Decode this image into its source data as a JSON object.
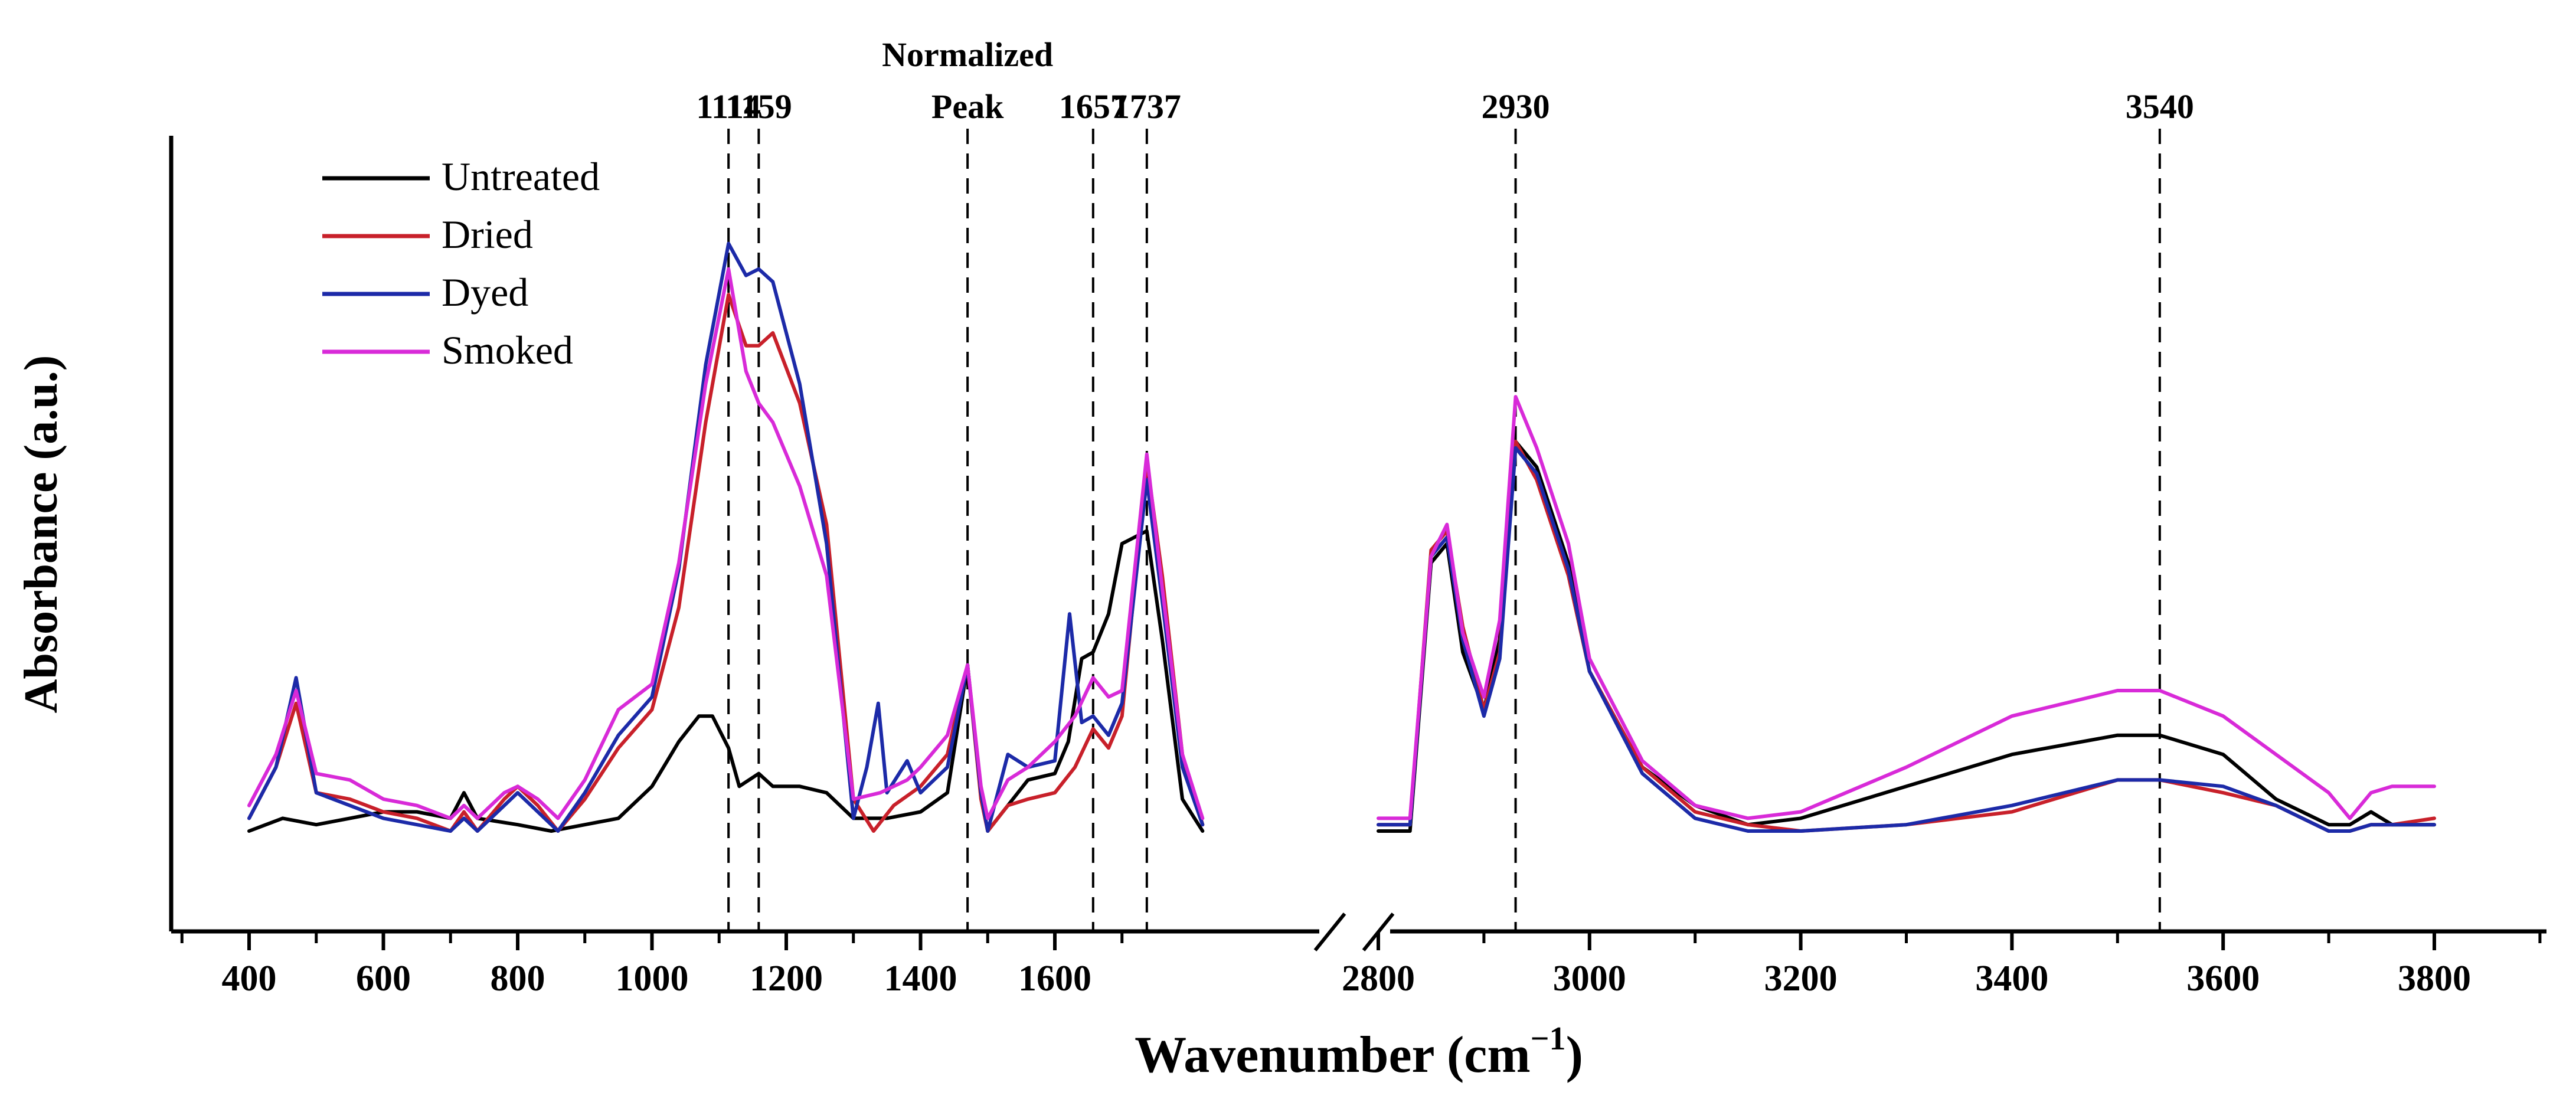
{
  "chart_data": {
    "type": "line",
    "title": "",
    "xlabel": "Wavenumber (cm",
    "xlabel_sup": "−1",
    "xlabel_close": ")",
    "ylabel": "Absorbance (a.u.)",
    "x_ranges": [
      [
        400,
        1750
      ],
      [
        2800,
        3800
      ]
    ],
    "x_ticks": [
      400,
      600,
      800,
      1000,
      1200,
      1400,
      1600,
      2800,
      3000,
      3200,
      3400,
      3600,
      3800
    ],
    "x_tick_labels": [
      "400",
      "600",
      "800",
      "1000",
      "1200",
      "1400",
      "1600",
      "2800",
      "3000",
      "3200",
      "3400",
      "3600",
      "3800"
    ],
    "ylim": [
      -0.05,
      1.0
    ],
    "axis_break_between": [
      1750,
      2800
    ],
    "legend": {
      "placement": "top-left",
      "entries": [
        "Untreated",
        "Dried",
        "Dyed",
        "Smoked"
      ]
    },
    "annotations": [
      {
        "x": 1114,
        "label": "1114"
      },
      {
        "x": 1159,
        "label": "1159"
      },
      {
        "x": 1470,
        "label": "Peak",
        "label_top": "Normalized"
      },
      {
        "x": 1657,
        "label": "1657"
      },
      {
        "x": 1737,
        "label": "1737"
      },
      {
        "x": 2930,
        "label": "2930"
      },
      {
        "x": 3540,
        "label": "3540"
      }
    ],
    "series": [
      {
        "name": "Untreated",
        "color": "#000000",
        "points": [
          [
            400,
            0.0
          ],
          [
            450,
            0.02
          ],
          [
            500,
            0.01
          ],
          [
            550,
            0.02
          ],
          [
            600,
            0.03
          ],
          [
            650,
            0.03
          ],
          [
            700,
            0.02
          ],
          [
            720,
            0.06
          ],
          [
            740,
            0.02
          ],
          [
            800,
            0.01
          ],
          [
            850,
            0.0
          ],
          [
            900,
            0.01
          ],
          [
            950,
            0.02
          ],
          [
            1000,
            0.07
          ],
          [
            1040,
            0.14
          ],
          [
            1070,
            0.18
          ],
          [
            1090,
            0.18
          ],
          [
            1114,
            0.13
          ],
          [
            1130,
            0.07
          ],
          [
            1159,
            0.09
          ],
          [
            1180,
            0.07
          ],
          [
            1220,
            0.07
          ],
          [
            1260,
            0.06
          ],
          [
            1300,
            0.02
          ],
          [
            1350,
            0.02
          ],
          [
            1400,
            0.03
          ],
          [
            1440,
            0.06
          ],
          [
            1470,
            0.26
          ],
          [
            1490,
            0.06
          ],
          [
            1500,
            0.0
          ],
          [
            1530,
            0.04
          ],
          [
            1560,
            0.08
          ],
          [
            1600,
            0.09
          ],
          [
            1620,
            0.14
          ],
          [
            1640,
            0.27
          ],
          [
            1657,
            0.28
          ],
          [
            1680,
            0.34
          ],
          [
            1700,
            0.45
          ],
          [
            1737,
            0.47
          ],
          [
            1760,
            0.3
          ],
          [
            1790,
            0.05
          ],
          [
            1820,
            0.0
          ],
          [
            2800,
            0.0
          ],
          [
            2830,
            0.0
          ],
          [
            2850,
            0.42
          ],
          [
            2865,
            0.45
          ],
          [
            2880,
            0.28
          ],
          [
            2900,
            0.19
          ],
          [
            2915,
            0.3
          ],
          [
            2930,
            0.61
          ],
          [
            2950,
            0.57
          ],
          [
            2980,
            0.42
          ],
          [
            3000,
            0.25
          ],
          [
            3050,
            0.1
          ],
          [
            3100,
            0.04
          ],
          [
            3150,
            0.01
          ],
          [
            3200,
            0.02
          ],
          [
            3300,
            0.07
          ],
          [
            3400,
            0.12
          ],
          [
            3500,
            0.15
          ],
          [
            3540,
            0.15
          ],
          [
            3600,
            0.12
          ],
          [
            3650,
            0.05
          ],
          [
            3700,
            0.01
          ],
          [
            3720,
            0.01
          ],
          [
            3740,
            0.03
          ],
          [
            3760,
            0.01
          ],
          [
            3800,
            0.01
          ]
        ]
      },
      {
        "name": "Dried",
        "color": "#c8202a",
        "points": [
          [
            400,
            0.02
          ],
          [
            440,
            0.1
          ],
          [
            470,
            0.2
          ],
          [
            500,
            0.06
          ],
          [
            550,
            0.05
          ],
          [
            600,
            0.03
          ],
          [
            650,
            0.02
          ],
          [
            700,
            0.0
          ],
          [
            720,
            0.03
          ],
          [
            740,
            0.0
          ],
          [
            780,
            0.05
          ],
          [
            800,
            0.07
          ],
          [
            830,
            0.04
          ],
          [
            860,
            0.0
          ],
          [
            900,
            0.05
          ],
          [
            950,
            0.13
          ],
          [
            1000,
            0.19
          ],
          [
            1040,
            0.35
          ],
          [
            1080,
            0.64
          ],
          [
            1114,
            0.84
          ],
          [
            1140,
            0.76
          ],
          [
            1159,
            0.76
          ],
          [
            1180,
            0.78
          ],
          [
            1220,
            0.67
          ],
          [
            1260,
            0.48
          ],
          [
            1300,
            0.05
          ],
          [
            1330,
            0.0
          ],
          [
            1360,
            0.04
          ],
          [
            1400,
            0.07
          ],
          [
            1440,
            0.12
          ],
          [
            1470,
            0.26
          ],
          [
            1490,
            0.05
          ],
          [
            1500,
            0.0
          ],
          [
            1530,
            0.04
          ],
          [
            1560,
            0.05
          ],
          [
            1600,
            0.06
          ],
          [
            1630,
            0.1
          ],
          [
            1657,
            0.16
          ],
          [
            1680,
            0.13
          ],
          [
            1700,
            0.18
          ],
          [
            1737,
            0.58
          ],
          [
            1760,
            0.4
          ],
          [
            1790,
            0.12
          ],
          [
            1820,
            0.01
          ],
          [
            2800,
            0.01
          ],
          [
            2830,
            0.01
          ],
          [
            2850,
            0.44
          ],
          [
            2865,
            0.47
          ],
          [
            2880,
            0.32
          ],
          [
            2900,
            0.19
          ],
          [
            2915,
            0.28
          ],
          [
            2930,
            0.61
          ],
          [
            2950,
            0.55
          ],
          [
            2980,
            0.4
          ],
          [
            3000,
            0.25
          ],
          [
            3050,
            0.1
          ],
          [
            3100,
            0.03
          ],
          [
            3150,
            0.01
          ],
          [
            3200,
            0.0
          ],
          [
            3300,
            0.01
          ],
          [
            3400,
            0.03
          ],
          [
            3500,
            0.08
          ],
          [
            3540,
            0.08
          ],
          [
            3600,
            0.06
          ],
          [
            3650,
            0.04
          ],
          [
            3700,
            0.0
          ],
          [
            3720,
            0.0
          ],
          [
            3740,
            0.01
          ],
          [
            3760,
            0.01
          ],
          [
            3800,
            0.02
          ]
        ]
      },
      {
        "name": "Dyed",
        "color": "#1c2aa8",
        "points": [
          [
            400,
            0.02
          ],
          [
            440,
            0.1
          ],
          [
            470,
            0.24
          ],
          [
            500,
            0.06
          ],
          [
            550,
            0.04
          ],
          [
            600,
            0.02
          ],
          [
            650,
            0.01
          ],
          [
            700,
            0.0
          ],
          [
            720,
            0.02
          ],
          [
            740,
            0.0
          ],
          [
            780,
            0.04
          ],
          [
            800,
            0.06
          ],
          [
            830,
            0.03
          ],
          [
            860,
            0.0
          ],
          [
            900,
            0.06
          ],
          [
            950,
            0.15
          ],
          [
            1000,
            0.21
          ],
          [
            1040,
            0.41
          ],
          [
            1080,
            0.73
          ],
          [
            1114,
            0.92
          ],
          [
            1140,
            0.87
          ],
          [
            1159,
            0.88
          ],
          [
            1180,
            0.86
          ],
          [
            1220,
            0.7
          ],
          [
            1260,
            0.45
          ],
          [
            1300,
            0.02
          ],
          [
            1320,
            0.1
          ],
          [
            1337,
            0.2
          ],
          [
            1350,
            0.06
          ],
          [
            1380,
            0.11
          ],
          [
            1400,
            0.06
          ],
          [
            1440,
            0.1
          ],
          [
            1470,
            0.26
          ],
          [
            1490,
            0.06
          ],
          [
            1500,
            0.0
          ],
          [
            1530,
            0.12
          ],
          [
            1560,
            0.1
          ],
          [
            1600,
            0.11
          ],
          [
            1622,
            0.34
          ],
          [
            1640,
            0.17
          ],
          [
            1657,
            0.18
          ],
          [
            1680,
            0.15
          ],
          [
            1700,
            0.2
          ],
          [
            1737,
            0.55
          ],
          [
            1760,
            0.36
          ],
          [
            1790,
            0.1
          ],
          [
            1820,
            0.01
          ],
          [
            2800,
            0.01
          ],
          [
            2830,
            0.01
          ],
          [
            2850,
            0.43
          ],
          [
            2865,
            0.46
          ],
          [
            2880,
            0.3
          ],
          [
            2900,
            0.18
          ],
          [
            2915,
            0.27
          ],
          [
            2930,
            0.6
          ],
          [
            2950,
            0.56
          ],
          [
            2980,
            0.41
          ],
          [
            3000,
            0.25
          ],
          [
            3050,
            0.09
          ],
          [
            3100,
            0.02
          ],
          [
            3150,
            0.0
          ],
          [
            3200,
            0.0
          ],
          [
            3300,
            0.01
          ],
          [
            3400,
            0.04
          ],
          [
            3500,
            0.08
          ],
          [
            3540,
            0.08
          ],
          [
            3600,
            0.07
          ],
          [
            3650,
            0.04
          ],
          [
            3700,
            0.0
          ],
          [
            3720,
            0.0
          ],
          [
            3740,
            0.01
          ],
          [
            3760,
            0.01
          ],
          [
            3800,
            0.01
          ]
        ]
      },
      {
        "name": "Smoked",
        "color": "#d82ad8",
        "points": [
          [
            400,
            0.04
          ],
          [
            440,
            0.12
          ],
          [
            470,
            0.22
          ],
          [
            500,
            0.09
          ],
          [
            550,
            0.08
          ],
          [
            600,
            0.05
          ],
          [
            650,
            0.04
          ],
          [
            700,
            0.02
          ],
          [
            720,
            0.04
          ],
          [
            740,
            0.02
          ],
          [
            780,
            0.06
          ],
          [
            800,
            0.07
          ],
          [
            830,
            0.05
          ],
          [
            860,
            0.02
          ],
          [
            900,
            0.08
          ],
          [
            950,
            0.19
          ],
          [
            1000,
            0.23
          ],
          [
            1040,
            0.42
          ],
          [
            1080,
            0.7
          ],
          [
            1114,
            0.88
          ],
          [
            1140,
            0.72
          ],
          [
            1159,
            0.67
          ],
          [
            1180,
            0.64
          ],
          [
            1220,
            0.54
          ],
          [
            1260,
            0.4
          ],
          [
            1300,
            0.05
          ],
          [
            1340,
            0.06
          ],
          [
            1380,
            0.08
          ],
          [
            1400,
            0.1
          ],
          [
            1440,
            0.15
          ],
          [
            1470,
            0.26
          ],
          [
            1490,
            0.07
          ],
          [
            1500,
            0.02
          ],
          [
            1530,
            0.08
          ],
          [
            1560,
            0.1
          ],
          [
            1600,
            0.14
          ],
          [
            1630,
            0.18
          ],
          [
            1657,
            0.24
          ],
          [
            1680,
            0.21
          ],
          [
            1700,
            0.22
          ],
          [
            1737,
            0.59
          ],
          [
            1760,
            0.38
          ],
          [
            1790,
            0.12
          ],
          [
            1820,
            0.02
          ],
          [
            2800,
            0.02
          ],
          [
            2830,
            0.02
          ],
          [
            2850,
            0.43
          ],
          [
            2865,
            0.48
          ],
          [
            2880,
            0.31
          ],
          [
            2900,
            0.21
          ],
          [
            2915,
            0.33
          ],
          [
            2930,
            0.68
          ],
          [
            2950,
            0.6
          ],
          [
            2980,
            0.45
          ],
          [
            3000,
            0.27
          ],
          [
            3050,
            0.11
          ],
          [
            3100,
            0.04
          ],
          [
            3150,
            0.02
          ],
          [
            3200,
            0.03
          ],
          [
            3300,
            0.1
          ],
          [
            3400,
            0.18
          ],
          [
            3500,
            0.22
          ],
          [
            3540,
            0.22
          ],
          [
            3600,
            0.18
          ],
          [
            3650,
            0.12
          ],
          [
            3700,
            0.06
          ],
          [
            3720,
            0.02
          ],
          [
            3740,
            0.06
          ],
          [
            3760,
            0.07
          ],
          [
            3800,
            0.07
          ]
        ]
      }
    ]
  }
}
